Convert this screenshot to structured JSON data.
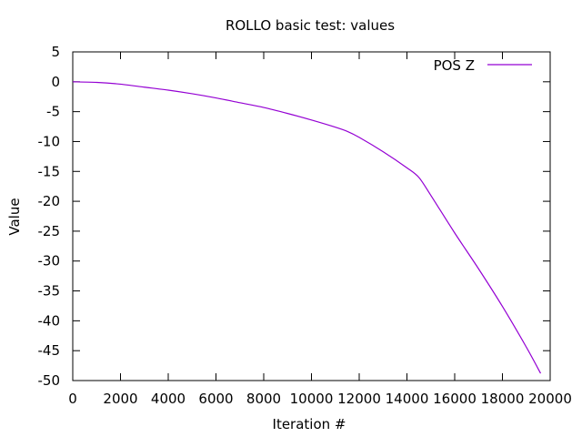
{
  "chart_data": {
    "type": "line",
    "title": "ROLLO  basic test: values",
    "xlabel": "Iteration #",
    "ylabel": "Value",
    "xlim": [
      0,
      20000
    ],
    "ylim": [
      -50,
      5
    ],
    "xticks": [
      0,
      2000,
      4000,
      6000,
      8000,
      10000,
      12000,
      14000,
      16000,
      18000,
      20000
    ],
    "yticks": [
      5,
      0,
      -5,
      -10,
      -15,
      -20,
      -25,
      -30,
      -35,
      -40,
      -45,
      -50
    ],
    "grid": false,
    "legend_position": "top-right",
    "series": [
      {
        "name": "POS Z",
        "color": "#9400d3",
        "x": [
          0,
          1000,
          2000,
          3000,
          4000,
          5000,
          6000,
          7000,
          8000,
          9000,
          10000,
          11000,
          11500,
          12000,
          13000,
          14000,
          14500,
          15000,
          16000,
          17000,
          18000,
          19000,
          19600
        ],
        "y": [
          0,
          -0.1,
          -0.4,
          -0.9,
          -1.4,
          -2.0,
          -2.7,
          -3.5,
          -4.3,
          -5.3,
          -6.4,
          -7.6,
          -8.3,
          -9.3,
          -11.7,
          -14.4,
          -16.0,
          -19.0,
          -25.3,
          -31.3,
          -37.6,
          -44.4,
          -48.8
        ]
      }
    ]
  }
}
